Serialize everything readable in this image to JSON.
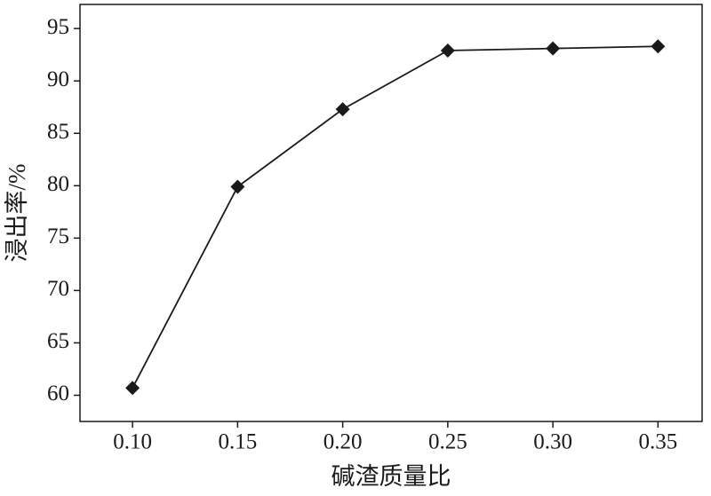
{
  "chart_data": {
    "type": "line",
    "x_label": "碱渣质量比",
    "y_label": "浸出率/%",
    "x": [
      0.1,
      0.15,
      0.2,
      0.25,
      0.3,
      0.35
    ],
    "series": [
      {
        "color": "#1a1a1a",
        "values": [
          60.7,
          79.9,
          87.3,
          92.9,
          93.1,
          93.3
        ]
      }
    ],
    "marker": "diamond",
    "xlim": [
      0.075,
      0.371
    ],
    "xticks": [
      {
        "value": 0.1,
        "label": "0.10"
      },
      {
        "value": 0.15,
        "label": "0.15"
      },
      {
        "value": 0.2,
        "label": "0.20"
      },
      {
        "value": 0.25,
        "label": "0.25"
      },
      {
        "value": 0.3,
        "label": "0.30"
      },
      {
        "value": 0.35,
        "label": "0.35"
      }
    ],
    "ylim": [
      57.5,
      97.3
    ],
    "yticks": [
      60,
      65,
      70,
      75,
      80,
      85,
      90,
      95
    ],
    "grid": false
  }
}
